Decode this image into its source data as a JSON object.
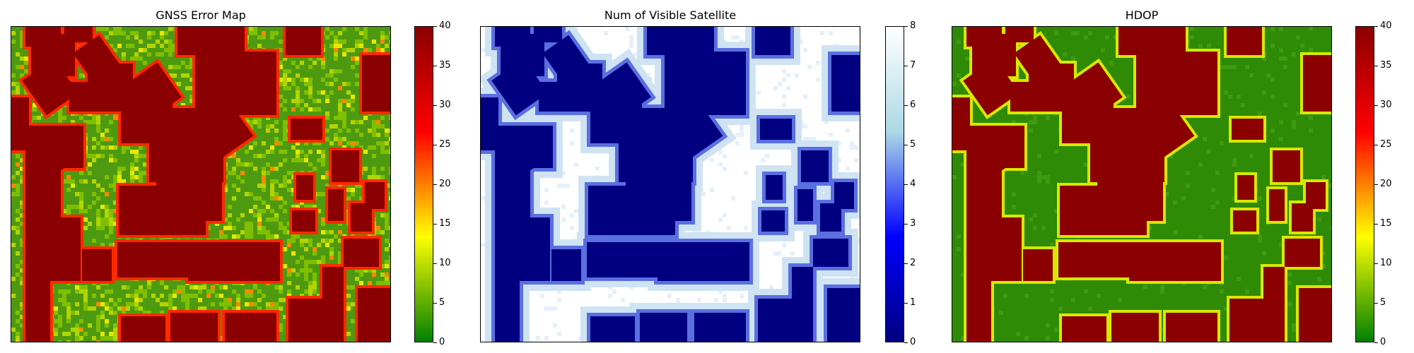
{
  "figure": {
    "panels": [
      {
        "title": "GNSS Error Map",
        "colormap": [
          "#008000",
          "#ffff00",
          "#ff0000",
          "#8b0000"
        ],
        "colorbar": {
          "min": 0,
          "max": 40,
          "ticks": [
            "0",
            "5",
            "10",
            "15",
            "20",
            "25",
            "30",
            "35",
            "40"
          ]
        }
      },
      {
        "title": "Num of Visible Satellite",
        "colormap": [
          "#000080",
          "#0000ff",
          "#add8e6",
          "#ffffff"
        ],
        "colorbar": {
          "min": 0,
          "max": 8,
          "ticks": [
            "0",
            "1",
            "2",
            "3",
            "4",
            "5",
            "6",
            "7",
            "8"
          ]
        }
      },
      {
        "title": "HDOP",
        "colormap": [
          "#008000",
          "#ffff00",
          "#ff0000",
          "#8b0000"
        ],
        "colorbar": {
          "min": 0,
          "max": 40,
          "ticks": [
            "0",
            "5",
            "10",
            "15",
            "20",
            "25",
            "30",
            "35",
            "40"
          ]
        }
      }
    ]
  },
  "chart_data": [
    {
      "type": "heatmap",
      "title": "GNSS Error Map",
      "colorbar_range": [
        0,
        40
      ],
      "colorbar_ticks": [
        0,
        5,
        10,
        15,
        20,
        25,
        30,
        35,
        40
      ],
      "colormap_stops": [
        "#008000",
        "#ffff00",
        "#ff0000",
        "#8b0000"
      ],
      "grid": false,
      "notes": "Building footprints at maximum value (40, dark red); open areas low error (~0-8, green) with speckle; building edges high (20-35, red/yellow)."
    },
    {
      "type": "heatmap",
      "title": "Num of Visible Satellite",
      "colorbar_range": [
        0,
        8
      ],
      "colorbar_ticks": [
        0,
        1,
        2,
        3,
        4,
        5,
        6,
        7,
        8
      ],
      "colormap_stops": [
        "#000080",
        "#0000ff",
        "#add8e6",
        "#ffffff"
      ],
      "grid": false,
      "notes": "Buildings at 0 (dark blue); open streets 7-8 (white); building surroundings 5-6 (light blue)."
    },
    {
      "type": "heatmap",
      "title": "HDOP",
      "colorbar_range": [
        0,
        40
      ],
      "colorbar_ticks": [
        0,
        5,
        10,
        15,
        20,
        25,
        30,
        35,
        40
      ],
      "colormap_stops": [
        "#008000",
        "#ffff00",
        "#ff0000",
        "#8b0000"
      ],
      "grid": false,
      "notes": "Buildings at 40 (dark red); open areas ~0-3 (green); edges near buildings ~10-15 (yellow)."
    }
  ]
}
